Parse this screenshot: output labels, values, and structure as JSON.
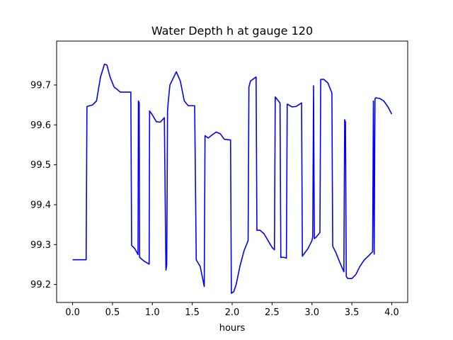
{
  "chart_data": {
    "type": "line",
    "title": "Water Depth h at gauge 120",
    "xlabel": "hours",
    "ylabel": "",
    "xlim": [
      -0.2,
      4.2
    ],
    "ylim": [
      99.155,
      99.81
    ],
    "xticks": [
      {
        "value": 0.0,
        "label": "0.0"
      },
      {
        "value": 0.5,
        "label": "0.5"
      },
      {
        "value": 1.0,
        "label": "1.0"
      },
      {
        "value": 1.5,
        "label": "1.5"
      },
      {
        "value": 2.0,
        "label": "2.0"
      },
      {
        "value": 2.5,
        "label": "2.5"
      },
      {
        "value": 3.0,
        "label": "3.0"
      },
      {
        "value": 3.5,
        "label": "3.5"
      },
      {
        "value": 4.0,
        "label": "4.0"
      }
    ],
    "yticks": [
      {
        "value": 99.2,
        "label": "99.2"
      },
      {
        "value": 99.3,
        "label": "99.3"
      },
      {
        "value": 99.4,
        "label": "99.4"
      },
      {
        "value": 99.5,
        "label": "99.5"
      },
      {
        "value": 99.6,
        "label": "99.6"
      },
      {
        "value": 99.7,
        "label": "99.7"
      }
    ],
    "grid": false,
    "legend": "none",
    "colors": {
      "line": "#0000ff"
    },
    "series": [
      {
        "x": [
          0.0,
          0.17,
          0.18,
          0.25,
          0.3,
          0.35,
          0.4,
          0.43,
          0.47,
          0.52,
          0.6,
          0.73,
          0.74,
          0.78,
          0.82,
          0.825,
          0.835,
          0.84,
          0.9,
          0.96,
          0.965,
          1.0,
          1.05,
          1.1,
          1.15,
          1.17,
          1.18,
          1.19,
          1.2,
          1.22,
          1.3,
          1.35,
          1.4,
          1.45,
          1.53,
          1.55,
          1.6,
          1.65,
          1.66,
          1.7,
          1.75,
          1.8,
          1.85,
          1.9,
          1.98,
          1.99,
          2.02,
          2.05,
          2.1,
          2.15,
          2.2,
          2.21,
          2.23,
          2.3,
          2.31,
          2.35,
          2.4,
          2.45,
          2.5,
          2.53,
          2.54,
          2.6,
          2.61,
          2.62,
          2.65,
          2.68,
          2.69,
          2.7,
          2.75,
          2.8,
          2.87,
          2.88,
          2.95,
          3.0,
          3.01,
          3.02,
          3.03,
          3.05,
          3.1,
          3.11,
          3.15,
          3.2,
          3.25,
          3.26,
          3.3,
          3.35,
          3.4,
          3.41,
          3.42,
          3.43,
          3.45,
          3.5,
          3.55,
          3.6,
          3.65,
          3.7,
          3.76,
          3.77,
          3.78,
          3.79,
          3.8,
          3.85,
          3.9,
          3.95,
          4.0
        ],
        "y": [
          99.262,
          99.262,
          99.646,
          99.65,
          99.66,
          99.72,
          99.752,
          99.75,
          99.72,
          99.695,
          99.682,
          99.682,
          99.298,
          99.29,
          99.275,
          99.66,
          99.655,
          99.268,
          99.258,
          99.251,
          99.635,
          99.625,
          99.608,
          99.607,
          99.618,
          99.236,
          99.25,
          99.635,
          99.66,
          99.7,
          99.733,
          99.71,
          99.66,
          99.648,
          99.648,
          99.262,
          99.245,
          99.195,
          99.573,
          99.567,
          99.575,
          99.582,
          99.578,
          99.564,
          99.562,
          99.178,
          99.182,
          99.2,
          99.248,
          99.285,
          99.31,
          99.695,
          99.71,
          99.72,
          99.336,
          99.336,
          99.327,
          99.31,
          99.293,
          99.287,
          99.67,
          99.655,
          99.268,
          99.268,
          99.268,
          99.266,
          99.652,
          99.651,
          99.645,
          99.646,
          99.655,
          99.271,
          99.29,
          99.31,
          99.32,
          99.698,
          99.315,
          99.318,
          99.33,
          99.714,
          99.714,
          99.705,
          99.68,
          99.296,
          99.28,
          99.255,
          99.232,
          99.613,
          99.607,
          99.22,
          99.215,
          99.215,
          99.225,
          99.245,
          99.26,
          99.27,
          99.282,
          99.66,
          99.276,
          99.665,
          99.668,
          99.666,
          99.66,
          99.646,
          99.627
        ]
      }
    ]
  }
}
